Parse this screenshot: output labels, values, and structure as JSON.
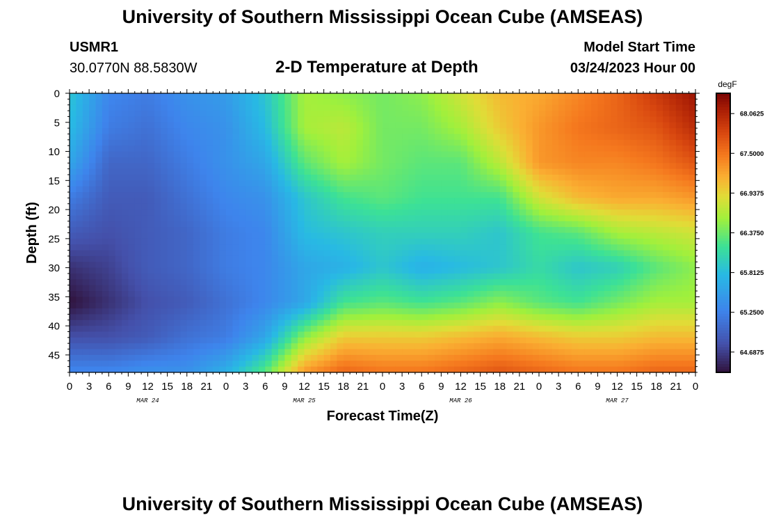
{
  "header": {
    "title": "University of Southern Mississippi Ocean Cube (AMSEAS)",
    "station": "USMR1",
    "coords": "30.0770N  88.5830W",
    "plot_title": "2-D Temperature at Depth",
    "model_start_label": "Model Start Time",
    "model_start_value": "03/24/2023 Hour 00"
  },
  "footer": {
    "title": "University of Southern Mississippi Ocean Cube (AMSEAS)"
  },
  "chart_data": {
    "type": "heatmap",
    "title": "2-D Temperature at Depth",
    "xlabel": "Forecast Time(Z)",
    "ylabel": "Depth (ft)",
    "x_ticks": [
      "0",
      "3",
      "6",
      "9",
      "12",
      "15",
      "18",
      "21",
      "0",
      "3",
      "6",
      "9",
      "12",
      "15",
      "18",
      "21",
      "0",
      "3",
      "6",
      "9",
      "12",
      "15",
      "18",
      "21",
      "0",
      "3",
      "6",
      "9",
      "12",
      "15",
      "18",
      "21",
      "0"
    ],
    "x_hours": [
      0,
      96
    ],
    "day_labels": [
      {
        "text": "MAR 24",
        "hour": 12
      },
      {
        "text": "MAR 25",
        "hour": 36
      },
      {
        "text": "MAR 26",
        "hour": 60
      },
      {
        "text": "MAR 27",
        "hour": 84
      }
    ],
    "y_ticks": [
      "0",
      "5",
      "10",
      "15",
      "20",
      "25",
      "30",
      "35",
      "40",
      "45"
    ],
    "ylim": [
      0,
      48
    ],
    "colorbar": {
      "units": "degF",
      "min": 64.4,
      "max": 68.35,
      "labels": [
        "68.0625",
        "67.5000",
        "66.9375",
        "66.3750",
        "65.8125",
        "65.2500",
        "64.6875"
      ]
    },
    "grid_hours": [
      0,
      6,
      12,
      18,
      24,
      30,
      36,
      42,
      48,
      54,
      60,
      66,
      72,
      78,
      84,
      90,
      96
    ],
    "grid_depths": [
      0,
      6,
      12,
      18,
      24,
      30,
      36,
      42,
      48
    ],
    "values": [
      [
        65.9,
        65.3,
        65.2,
        65.4,
        65.5,
        65.9,
        66.6,
        66.5,
        66.4,
        66.5,
        66.8,
        67.1,
        67.2,
        67.4,
        67.6,
        67.9,
        68.2
      ],
      [
        65.8,
        65.2,
        65.1,
        65.3,
        65.4,
        65.8,
        66.6,
        66.7,
        66.4,
        66.4,
        66.6,
        67.0,
        67.3,
        67.5,
        67.6,
        67.7,
        68.0
      ],
      [
        65.6,
        65.0,
        65.0,
        65.2,
        65.4,
        65.6,
        66.3,
        66.6,
        66.4,
        66.3,
        66.3,
        66.7,
        67.3,
        67.4,
        67.4,
        67.5,
        67.7
      ],
      [
        65.2,
        64.9,
        64.9,
        65.1,
        65.3,
        65.4,
        65.9,
        66.2,
        66.3,
        66.2,
        66.2,
        66.2,
        66.8,
        67.1,
        67.2,
        67.2,
        67.3
      ],
      [
        64.9,
        64.8,
        64.9,
        65.0,
        65.2,
        65.3,
        65.8,
        65.9,
        66.0,
        66.0,
        66.0,
        65.9,
        66.2,
        66.3,
        66.6,
        66.7,
        66.8
      ],
      [
        64.6,
        64.7,
        64.9,
        65.0,
        65.2,
        65.3,
        65.6,
        65.7,
        65.9,
        65.7,
        65.8,
        65.9,
        66.1,
        65.9,
        66.0,
        66.3,
        66.5
      ],
      [
        64.4,
        64.6,
        64.8,
        64.9,
        65.1,
        65.3,
        65.6,
        66.2,
        66.3,
        66.2,
        66.3,
        66.5,
        66.3,
        66.2,
        66.4,
        66.6,
        66.6
      ],
      [
        64.8,
        64.8,
        64.9,
        65.1,
        65.2,
        65.6,
        66.5,
        67.0,
        67.0,
        67.0,
        67.1,
        67.2,
        67.1,
        67.0,
        67.0,
        67.1,
        67.1
      ],
      [
        65.3,
        65.3,
        65.4,
        65.4,
        65.7,
        66.3,
        67.3,
        67.6,
        67.5,
        67.5,
        67.6,
        67.7,
        67.6,
        67.5,
        67.5,
        67.6,
        67.6
      ]
    ]
  }
}
